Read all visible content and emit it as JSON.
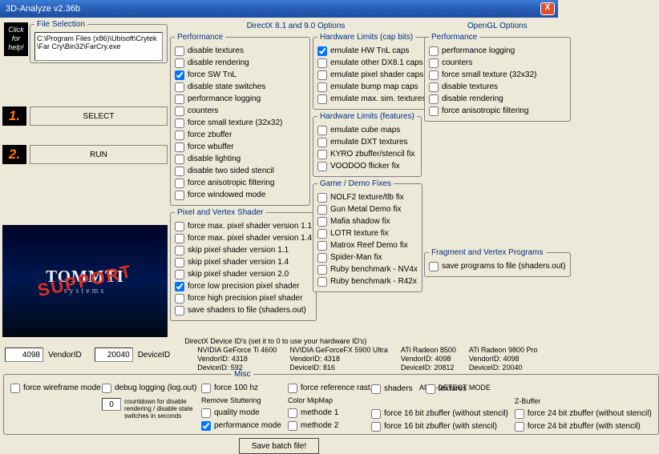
{
  "window": {
    "title": "3D-Analyze v2.36b",
    "close": "X"
  },
  "help_badge": "Click for help!",
  "file_selection": {
    "legend": "File Selection",
    "path": "C:\\Program Files (x86)\\Ubisoft\\Crytek\\Far Cry\\Bin32\\FarCry.exe",
    "select": "SELECT",
    "run": "RUN",
    "num1": "1.",
    "num2": "2."
  },
  "logo": {
    "line1": "TOMMTI",
    "line2": "systems",
    "overlay": "SUPPORT"
  },
  "dx_header": "DirectX 8.1 and 9.0 Options",
  "ogl_header": "OpenGL Options",
  "perf": {
    "legend": "Performance",
    "items": [
      {
        "label": "disable textures",
        "checked": false
      },
      {
        "label": "disable rendering",
        "checked": false
      },
      {
        "label": "force SW TnL",
        "checked": true
      },
      {
        "label": "disable state switches",
        "checked": false
      },
      {
        "label": "performance logging",
        "checked": false
      },
      {
        "label": "counters",
        "checked": false
      },
      {
        "label": "force small texture (32x32)",
        "checked": false
      },
      {
        "label": "force zbuffer",
        "checked": false
      },
      {
        "label": "force wbuffer",
        "checked": false
      },
      {
        "label": "disable lighting",
        "checked": false
      },
      {
        "label": "disable two sided stencil",
        "checked": false
      },
      {
        "label": "force anisotropic filtering",
        "checked": false
      },
      {
        "label": "force windowed mode",
        "checked": false
      }
    ]
  },
  "pvs": {
    "legend": "Pixel and Vertex Shader",
    "items": [
      {
        "label": "force max. pixel shader version 1.1",
        "checked": false
      },
      {
        "label": "force max. pixel shader version 1.4",
        "checked": false
      },
      {
        "label": "skip pixel shader version 1.1",
        "checked": false
      },
      {
        "label": "skip pixel shader version 1.4",
        "checked": false
      },
      {
        "label": "skip pixel shader version 2.0",
        "checked": false
      },
      {
        "label": "force low precision pixel shader",
        "checked": true
      },
      {
        "label": "force high precision pixel shader",
        "checked": false
      },
      {
        "label": "save shaders to file (shaders.out)",
        "checked": false
      }
    ]
  },
  "hw_caps": {
    "legend": "Hardware Limits (cap bits)",
    "items": [
      {
        "label": "emulate HW TnL caps",
        "checked": true
      },
      {
        "label": "emulate other DX8.1 caps",
        "checked": false
      },
      {
        "label": "emulate pixel shader caps",
        "checked": false
      },
      {
        "label": "emulate bump map caps",
        "checked": false
      },
      {
        "label": "emulate max. sim. textures",
        "checked": false
      }
    ]
  },
  "hw_feat": {
    "legend": "Hardware Limits (features)",
    "items": [
      {
        "label": "emulate cube maps",
        "checked": false
      },
      {
        "label": "emulate DXT textures",
        "checked": false
      },
      {
        "label": "KYRO zbuffer/stencil fix",
        "checked": false
      },
      {
        "label": "VOODOO flicker fix",
        "checked": false
      }
    ]
  },
  "game_fix": {
    "legend": "Game / Demo Fixes",
    "items": [
      {
        "label": "NOLF2 texture/tlb fix",
        "checked": false
      },
      {
        "label": "Gun Metal Demo fix",
        "checked": false
      },
      {
        "label": "Mafia shadow fix",
        "checked": false
      },
      {
        "label": "LOTR texture fix",
        "checked": false
      },
      {
        "label": "Matrox Reef Demo fix",
        "checked": false
      },
      {
        "label": "Spider-Man fix",
        "checked": false
      },
      {
        "label": "Ruby benchmark - NV4x",
        "checked": false
      },
      {
        "label": "Ruby benchmark - R42x",
        "checked": false
      }
    ]
  },
  "ogl_perf": {
    "legend": "Performance",
    "items": [
      {
        "label": "performance logging",
        "checked": false
      },
      {
        "label": "counters",
        "checked": false
      },
      {
        "label": "force small texture (32x32)",
        "checked": false
      },
      {
        "label": "disable textures",
        "checked": false
      },
      {
        "label": "disable rendering",
        "checked": false
      },
      {
        "label": "force anisotropic filtering",
        "checked": false
      }
    ]
  },
  "fvp": {
    "legend": "Fragment and Vertex Programs",
    "items": [
      {
        "label": "save programs to file (shaders.out)",
        "checked": false
      }
    ]
  },
  "vendor": {
    "vendorid": "4098",
    "vendorid_lbl": "VendorID",
    "deviceid": "20040",
    "deviceid_lbl": "DeviceID",
    "header": "DirectX Device ID's (set it to 0 to use your hardware ID's)",
    "cards": [
      {
        "name": "NVIDIA GeForce Ti 4600",
        "v": "VendorID: 4318",
        "d": "DeviceID: 592"
      },
      {
        "name": "NVIDIA GeForceFX 5900 Ultra",
        "v": "VendorID: 4318",
        "d": "DeviceID: 816"
      },
      {
        "name": "ATi Radeon 8500",
        "v": "VendorID: 4098",
        "d": "DeviceID: 20812"
      },
      {
        "name": "ATi Radeon 9800 Pro",
        "v": "VendorID: 4098",
        "d": "DeviceID: 20040"
      }
    ]
  },
  "misc": {
    "legend": "Misc",
    "wireframe": "force wireframe mode",
    "debug": "debug logging (log.out)",
    "countdown_lbl": "countdown for disable rendering / disable state switches in seconds",
    "countdown_val": "0",
    "hz100": "force 100 hz",
    "refrast": "force reference rast.",
    "rs": {
      "legend": "Remove Stuttering",
      "quality": "quality mode",
      "perf": "performance mode",
      "perf_checked": true
    },
    "cmm": {
      "legend": "Color MipMap",
      "m1": "methode 1",
      "m2": "methode 2"
    },
    "ad": {
      "legend": "ANTI-DETECT MODE",
      "shaders": "shaders",
      "textures": "textures"
    },
    "zb": {
      "legend": "Z-Buffer",
      "items": [
        "force 16 bit zbuffer (without stencil)",
        "force 16 bit zbuffer (with stencil)",
        "force 24 bit zbuffer (without stencil)",
        "force 24 bit zbuffer (with stencil)"
      ]
    }
  },
  "save_batch": "Save batch file!"
}
